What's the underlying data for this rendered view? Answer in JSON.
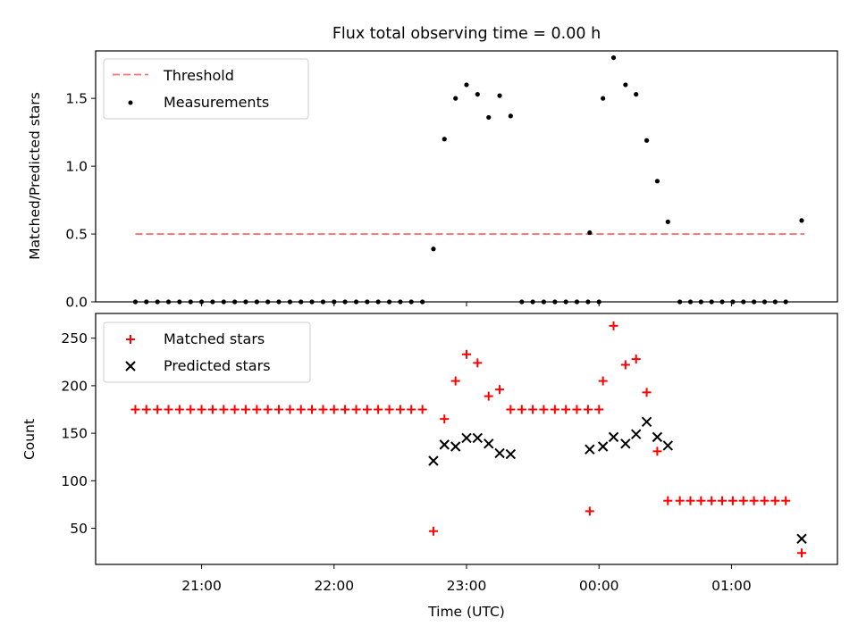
{
  "chart_data": [
    {
      "type": "scatter",
      "title": "Flux total observing time = 0.00 h",
      "ylabel": "Matched/Predicted stars",
      "xlabel": "",
      "ylim": [
        0,
        1.85
      ],
      "yticks": [
        "0.0",
        "0.5",
        "1.0",
        "1.5"
      ],
      "ytick_values": [
        0.0,
        0.5,
        1.0,
        1.5
      ],
      "grid": false,
      "legend_placement": "upper-left",
      "legend": [
        "Threshold",
        "Measurements"
      ],
      "colors": {
        "threshold": "#ff7070",
        "measurements": "#000000"
      },
      "threshold": {
        "name": "Threshold",
        "x": [
          20.5,
          25.55
        ],
        "y": [
          0.5,
          0.5
        ]
      },
      "series": [
        {
          "name": "Measurements",
          "points": [
            [
              20.5,
              0
            ],
            [
              20.583,
              0
            ],
            [
              20.667,
              0
            ],
            [
              20.75,
              0
            ],
            [
              20.833,
              0
            ],
            [
              20.917,
              0
            ],
            [
              21.0,
              0
            ],
            [
              21.083,
              0
            ],
            [
              21.167,
              0
            ],
            [
              21.25,
              0
            ],
            [
              21.333,
              0
            ],
            [
              21.417,
              0
            ],
            [
              21.5,
              0
            ],
            [
              21.583,
              0
            ],
            [
              21.667,
              0
            ],
            [
              21.75,
              0
            ],
            [
              21.833,
              0
            ],
            [
              21.917,
              0
            ],
            [
              22.0,
              0
            ],
            [
              22.083,
              0
            ],
            [
              22.167,
              0
            ],
            [
              22.25,
              0
            ],
            [
              22.333,
              0
            ],
            [
              22.417,
              0
            ],
            [
              22.5,
              0
            ],
            [
              22.583,
              0
            ],
            [
              22.667,
              0
            ],
            [
              22.75,
              0.39
            ],
            [
              22.833,
              1.2
            ],
            [
              22.917,
              1.5
            ],
            [
              23.0,
              1.6
            ],
            [
              23.083,
              1.53
            ],
            [
              23.167,
              1.36
            ],
            [
              23.25,
              1.52
            ],
            [
              23.333,
              1.37
            ],
            [
              23.417,
              0
            ],
            [
              23.5,
              0
            ],
            [
              23.583,
              0
            ],
            [
              23.667,
              0
            ],
            [
              23.75,
              0
            ],
            [
              23.833,
              0
            ],
            [
              23.917,
              0
            ],
            [
              24.0,
              0
            ],
            [
              23.93,
              0.51
            ],
            [
              24.03,
              1.5
            ],
            [
              24.11,
              1.8
            ],
            [
              24.2,
              1.6
            ],
            [
              24.28,
              1.53
            ],
            [
              24.36,
              1.19
            ],
            [
              24.44,
              0.89
            ],
            [
              24.52,
              0.59
            ],
            [
              24.61,
              0
            ],
            [
              24.69,
              0
            ],
            [
              24.77,
              0
            ],
            [
              24.85,
              0
            ],
            [
              24.93,
              0
            ],
            [
              25.01,
              0
            ],
            [
              25.09,
              0
            ],
            [
              25.17,
              0
            ],
            [
              25.25,
              0
            ],
            [
              25.33,
              0
            ],
            [
              25.41,
              0
            ],
            [
              25.53,
              0.6
            ]
          ]
        }
      ]
    },
    {
      "type": "scatter",
      "title": "",
      "ylabel": "Count",
      "xlabel": "Time (UTC)",
      "ylim": [
        12,
        276
      ],
      "yticks": [
        "50",
        "100",
        "150",
        "200",
        "250"
      ],
      "ytick_values": [
        50,
        100,
        150,
        200,
        250
      ],
      "xticks": [
        "21:00",
        "22:00",
        "23:00",
        "00:00",
        "01:00"
      ],
      "xtick_values": [
        21,
        22,
        23,
        24,
        25
      ],
      "xlim": [
        20.2,
        25.8
      ],
      "grid": false,
      "legend_placement": "upper-left",
      "legend": [
        "Matched stars",
        "Predicted stars"
      ],
      "colors": {
        "matched": "#ff0000",
        "predicted": "#000000"
      },
      "series": [
        {
          "name": "Matched stars",
          "points": [
            [
              20.5,
              175
            ],
            [
              20.583,
              175
            ],
            [
              20.667,
              175
            ],
            [
              20.75,
              175
            ],
            [
              20.833,
              175
            ],
            [
              20.917,
              175
            ],
            [
              21.0,
              175
            ],
            [
              21.083,
              175
            ],
            [
              21.167,
              175
            ],
            [
              21.25,
              175
            ],
            [
              21.333,
              175
            ],
            [
              21.417,
              175
            ],
            [
              21.5,
              175
            ],
            [
              21.583,
              175
            ],
            [
              21.667,
              175
            ],
            [
              21.75,
              175
            ],
            [
              21.833,
              175
            ],
            [
              21.917,
              175
            ],
            [
              22.0,
              175
            ],
            [
              22.083,
              175
            ],
            [
              22.167,
              175
            ],
            [
              22.25,
              175
            ],
            [
              22.333,
              175
            ],
            [
              22.417,
              175
            ],
            [
              22.5,
              175
            ],
            [
              22.583,
              175
            ],
            [
              22.667,
              175
            ],
            [
              22.75,
              47
            ],
            [
              22.833,
              165
            ],
            [
              22.917,
              205
            ],
            [
              23.0,
              233
            ],
            [
              23.083,
              224
            ],
            [
              23.167,
              189
            ],
            [
              23.25,
              196
            ],
            [
              23.333,
              175
            ],
            [
              23.417,
              175
            ],
            [
              23.5,
              175
            ],
            [
              23.583,
              175
            ],
            [
              23.667,
              175
            ],
            [
              23.75,
              175
            ],
            [
              23.833,
              175
            ],
            [
              23.917,
              175
            ],
            [
              24.0,
              175
            ],
            [
              23.93,
              68
            ],
            [
              24.03,
              205
            ],
            [
              24.11,
              263
            ],
            [
              24.2,
              222
            ],
            [
              24.28,
              228
            ],
            [
              24.36,
              193
            ],
            [
              24.44,
              131
            ],
            [
              24.52,
              79
            ],
            [
              24.61,
              79
            ],
            [
              24.69,
              79
            ],
            [
              24.77,
              79
            ],
            [
              24.85,
              79
            ],
            [
              24.93,
              79
            ],
            [
              25.01,
              79
            ],
            [
              25.09,
              79
            ],
            [
              25.17,
              79
            ],
            [
              25.25,
              79
            ],
            [
              25.33,
              79
            ],
            [
              25.41,
              79
            ],
            [
              25.53,
              24
            ]
          ]
        },
        {
          "name": "Predicted stars",
          "points": [
            [
              22.75,
              121
            ],
            [
              22.833,
              138
            ],
            [
              22.917,
              136
            ],
            [
              23.0,
              145
            ],
            [
              23.083,
              145
            ],
            [
              23.167,
              139
            ],
            [
              23.25,
              129
            ],
            [
              23.333,
              128
            ],
            [
              23.93,
              133
            ],
            [
              24.03,
              136
            ],
            [
              24.11,
              146
            ],
            [
              24.2,
              139
            ],
            [
              24.28,
              149
            ],
            [
              24.36,
              162
            ],
            [
              24.44,
              146
            ],
            [
              24.52,
              137
            ],
            [
              25.53,
              39
            ]
          ]
        }
      ]
    }
  ]
}
